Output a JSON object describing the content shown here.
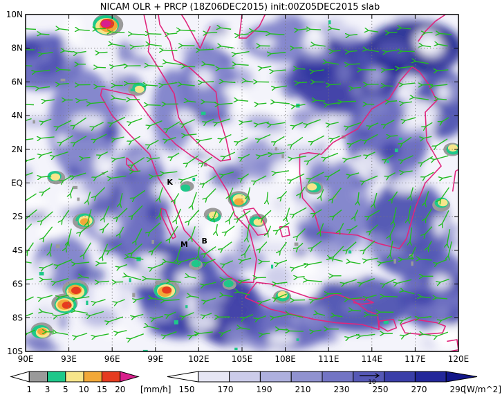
{
  "title": "NICAM OLR + PRCP (18Z06DEC2015) init:00Z05DEC2015 slab",
  "map": {
    "lon_range": [
      90,
      120
    ],
    "lat_range": [
      -10,
      10
    ],
    "lon_ticks": [
      "90E",
      "93E",
      "96E",
      "99E",
      "102E",
      "105E",
      "108E",
      "111E",
      "114E",
      "117E",
      "120E"
    ],
    "lat_ticks": [
      "10N",
      "8N",
      "6N",
      "4N",
      "2N",
      "EQ",
      "2S",
      "4S",
      "6S",
      "8S",
      "10S"
    ],
    "grid": true,
    "markers": [
      {
        "id": "K",
        "label": "K",
        "lon": 100.0,
        "lat": -0.1
      },
      {
        "id": "M",
        "label": "M",
        "lon": 101.0,
        "lat": -3.8
      },
      {
        "id": "B",
        "label": "B",
        "lon": 102.4,
        "lat": -3.6
      }
    ],
    "coastline_color": "#e0267d",
    "wind_vector_color": "#22bb22",
    "wind_direction": "westward"
  },
  "precip_legend": {
    "levels": [
      "1",
      "3",
      "5",
      "10",
      "15",
      "20"
    ],
    "unit": "[mm/h]",
    "colors": [
      "#ffffff",
      "#9a9a9a",
      "#1ec88a",
      "#f7e58a",
      "#f2a838",
      "#e63b1f",
      "#d81f8c"
    ]
  },
  "olr_legend": {
    "levels": [
      "150",
      "170",
      "190",
      "210",
      "230",
      "250",
      "270",
      "290"
    ],
    "unit": "[W/m^2]",
    "vector_key": "10",
    "colors": [
      "#ffffff",
      "#e6e6f4",
      "#ccccea",
      "#aeb0de",
      "#9092d0",
      "#7274c4",
      "#5558b6",
      "#3a3ea8",
      "#23279a",
      "#121688"
    ]
  }
}
